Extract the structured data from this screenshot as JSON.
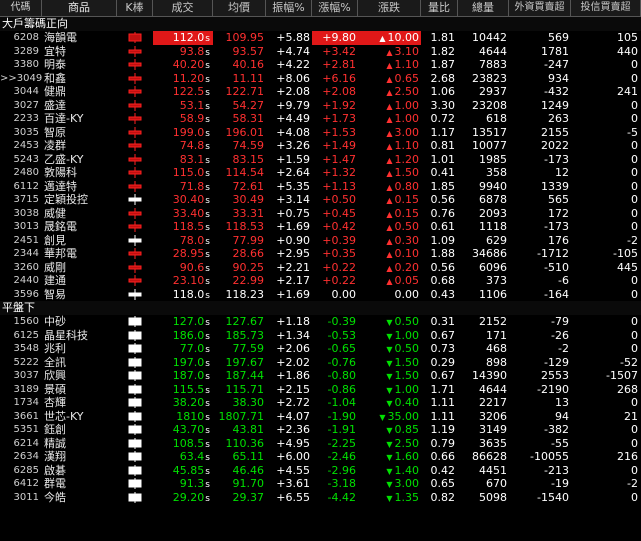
{
  "headers": {
    "code": "代碼",
    "name": "商品",
    "k": "K棒",
    "deal": "成交",
    "avg": "均價",
    "amp": "振幅%",
    "pct": "漲幅%",
    "chg": "漲跌",
    "vr": "量比",
    "vol": "總量",
    "fi": "外資買賣超",
    "it": "投信買賣超"
  },
  "sections": [
    {
      "title": "大戶籌碼正向",
      "rows": [
        {
          "code": "6208",
          "name": "海韻電",
          "k": "red-box",
          "deal": "112.0",
          "deal_flag": "s",
          "deal_hl": true,
          "avg": "109.95",
          "amp": "+5.88",
          "pct": "+9.80",
          "pct_hl": true,
          "chg": "10.00",
          "chg_hl": true,
          "dir": "up",
          "vr": "1.81",
          "vol": "10442",
          "fi": "569",
          "it": "105"
        },
        {
          "code": "3289",
          "name": "宜特",
          "k": "red-cross",
          "deal": "93.8",
          "deal_flag": "s",
          "avg": "93.57",
          "amp": "+4.74",
          "pct": "+3.42",
          "chg": "3.10",
          "dir": "up",
          "vr": "1.82",
          "vol": "4644",
          "fi": "1781",
          "it": "440"
        },
        {
          "code": "3380",
          "name": "明泰",
          "k": "red-cross",
          "deal": "40.20",
          "deal_flag": "s",
          "avg": "40.16",
          "amp": "+4.22",
          "pct": "+2.81",
          "chg": "1.10",
          "dir": "up",
          "vr": "1.87",
          "vol": "7883",
          "fi": "-247",
          "it": "0"
        },
        {
          "code": ">>3049",
          "name": "和鑫",
          "k": "red-cross",
          "deal": "11.20",
          "deal_flag": "s",
          "avg": "11.11",
          "amp": "+8.06",
          "pct": "+6.16",
          "chg": "0.65",
          "dir": "up",
          "vr": "2.68",
          "vol": "23823",
          "fi": "934",
          "it": "0"
        },
        {
          "code": "3044",
          "name": "健鼎",
          "k": "red-cross",
          "deal": "122.5",
          "deal_flag": "s",
          "avg": "122.71",
          "amp": "+2.08",
          "pct": "+2.08",
          "chg": "2.50",
          "dir": "up",
          "vr": "1.06",
          "vol": "2937",
          "fi": "-432",
          "it": "241"
        },
        {
          "code": "3027",
          "name": "盛達",
          "k": "red-cross",
          "deal": "53.1",
          "deal_flag": "s",
          "avg": "54.27",
          "amp": "+9.79",
          "pct": "+1.92",
          "chg": "1.00",
          "dir": "up",
          "vr": "3.30",
          "vol": "23208",
          "fi": "1249",
          "it": "0"
        },
        {
          "code": "2233",
          "name": "百達-KY",
          "k": "red-cross",
          "deal": "58.9",
          "deal_flag": "s",
          "avg": "58.31",
          "amp": "+4.49",
          "pct": "+1.73",
          "chg": "1.00",
          "dir": "up",
          "vr": "0.72",
          "vol": "618",
          "fi": "263",
          "it": "0"
        },
        {
          "code": "3035",
          "name": "智原",
          "k": "red-cross",
          "deal": "199.0",
          "deal_flag": "s",
          "avg": "196.01",
          "amp": "+4.08",
          "pct": "+1.53",
          "chg": "3.00",
          "dir": "up",
          "vr": "1.17",
          "vol": "13517",
          "fi": "2155",
          "it": "-5"
        },
        {
          "code": "2453",
          "name": "凌群",
          "k": "red-cross",
          "deal": "74.8",
          "deal_flag": "s",
          "avg": "74.59",
          "amp": "+3.26",
          "pct": "+1.49",
          "chg": "1.10",
          "dir": "up",
          "vr": "0.81",
          "vol": "10077",
          "fi": "2022",
          "it": "0"
        },
        {
          "code": "5243",
          "name": "乙盛-KY",
          "k": "red-cross",
          "deal": "83.1",
          "deal_flag": "s",
          "avg": "83.15",
          "amp": "+1.59",
          "pct": "+1.47",
          "chg": "1.20",
          "dir": "up",
          "vr": "1.01",
          "vol": "1985",
          "fi": "-173",
          "it": "0"
        },
        {
          "code": "2480",
          "name": "敦陽科",
          "k": "red-cross",
          "deal": "115.0",
          "deal_flag": "s",
          "avg": "114.54",
          "amp": "+2.64",
          "pct": "+1.32",
          "chg": "1.50",
          "dir": "up",
          "vr": "0.41",
          "vol": "358",
          "fi": "12",
          "it": "0"
        },
        {
          "code": "6112",
          "name": "邁達特",
          "k": "red-cross",
          "deal": "71.8",
          "deal_flag": "s",
          "avg": "72.61",
          "amp": "+5.35",
          "pct": "+1.13",
          "chg": "0.80",
          "dir": "up",
          "vr": "1.85",
          "vol": "9940",
          "fi": "1339",
          "it": "0"
        },
        {
          "code": "3715",
          "name": "定穎投控",
          "k": "white-cross",
          "deal": "30.40",
          "deal_flag": "s",
          "avg": "30.49",
          "amp": "+3.14",
          "pct": "+0.50",
          "chg": "0.15",
          "dir": "up",
          "vr": "0.56",
          "vol": "6878",
          "fi": "565",
          "it": "0"
        },
        {
          "code": "3038",
          "name": "威健",
          "k": "red-cross",
          "deal": "33.40",
          "deal_flag": "s",
          "avg": "33.31",
          "amp": "+0.75",
          "pct": "+0.45",
          "chg": "0.15",
          "dir": "up",
          "vr": "0.76",
          "vol": "2093",
          "fi": "172",
          "it": "0"
        },
        {
          "code": "3013",
          "name": "晟銘電",
          "k": "red-cross",
          "deal": "118.5",
          "deal_flag": "s",
          "avg": "118.53",
          "amp": "+1.69",
          "pct": "+0.42",
          "chg": "0.50",
          "dir": "up",
          "vr": "0.61",
          "vol": "1118",
          "fi": "-173",
          "it": "0"
        },
        {
          "code": "2451",
          "name": "創見",
          "k": "white-cross",
          "deal": "78.0",
          "deal_flag": "s",
          "avg": "77.99",
          "amp": "+0.90",
          "pct": "+0.39",
          "chg": "0.30",
          "dir": "up",
          "vr": "1.09",
          "vol": "629",
          "fi": "176",
          "it": "-2"
        },
        {
          "code": "2344",
          "name": "華邦電",
          "k": "red-cross",
          "deal": "28.95",
          "deal_flag": "s",
          "avg": "28.66",
          "amp": "+2.95",
          "pct": "+0.35",
          "chg": "0.10",
          "dir": "up",
          "vr": "1.88",
          "vol": "34686",
          "fi": "-1712",
          "it": "-105"
        },
        {
          "code": "3260",
          "name": "威剛",
          "k": "red-cross",
          "deal": "90.6",
          "deal_flag": "s",
          "avg": "90.25",
          "amp": "+2.21",
          "pct": "+0.22",
          "chg": "0.20",
          "dir": "up",
          "vr": "0.56",
          "vol": "6096",
          "fi": "-510",
          "it": "445"
        },
        {
          "code": "2440",
          "name": "建通",
          "k": "red-cross",
          "deal": "23.10",
          "deal_flag": "s",
          "avg": "22.99",
          "amp": "+2.17",
          "pct": "+0.22",
          "chg": "0.05",
          "dir": "up",
          "vr": "0.68",
          "vol": "373",
          "fi": "-6",
          "it": "0"
        },
        {
          "code": "3596",
          "name": "智易",
          "k": "white-cross",
          "deal": "118.0",
          "deal_flag": "s",
          "avg": "118.23",
          "amp": "+1.69",
          "pct": "0.00",
          "chg": "0.00",
          "dir": "flat",
          "vr": "0.43",
          "vol": "1106",
          "fi": "-164",
          "it": "0"
        }
      ]
    },
    {
      "title": "平盤下",
      "rows": [
        {
          "code": "1560",
          "name": "中砂",
          "k": "white-box",
          "deal": "127.0",
          "deal_flag": "s",
          "avg": "127.67",
          "amp": "+1.18",
          "pct": "-0.39",
          "chg": "0.50",
          "dir": "down",
          "vr": "0.31",
          "vol": "2152",
          "fi": "-79",
          "it": "0"
        },
        {
          "code": "6125",
          "name": "晶星科技",
          "k": "white-box",
          "deal": "186.0",
          "deal_flag": "s",
          "avg": "185.73",
          "amp": "+1.34",
          "pct": "-0.53",
          "chg": "1.00",
          "dir": "down",
          "vr": "0.67",
          "vol": "171",
          "fi": "-26",
          "it": "0"
        },
        {
          "code": "3548",
          "name": "兆利",
          "k": "white-box",
          "deal": "77.0",
          "deal_flag": "s",
          "avg": "77.59",
          "amp": "+2.06",
          "pct": "-0.65",
          "chg": "0.50",
          "dir": "down",
          "vr": "0.73",
          "vol": "468",
          "fi": "-2",
          "it": "0"
        },
        {
          "code": "5222",
          "name": "全訊",
          "k": "white-box",
          "deal": "197.0",
          "deal_flag": "s",
          "avg": "197.67",
          "amp": "+2.02",
          "pct": "-0.76",
          "chg": "1.50",
          "dir": "down",
          "vr": "0.29",
          "vol": "898",
          "fi": "-129",
          "it": "-52"
        },
        {
          "code": "3037",
          "name": "欣興",
          "k": "white-box",
          "deal": "187.0",
          "deal_flag": "s",
          "avg": "187.44",
          "amp": "+1.86",
          "pct": "-0.80",
          "chg": "1.50",
          "dir": "down",
          "vr": "0.67",
          "vol": "14390",
          "fi": "2553",
          "it": "-1507"
        },
        {
          "code": "3189",
          "name": "景碩",
          "k": "white-box",
          "deal": "115.5",
          "deal_flag": "s",
          "avg": "115.71",
          "amp": "+2.15",
          "pct": "-0.86",
          "chg": "1.00",
          "dir": "down",
          "vr": "1.71",
          "vol": "4644",
          "fi": "-2190",
          "it": "268"
        },
        {
          "code": "1734",
          "name": "杏輝",
          "k": "white-box",
          "deal": "38.20",
          "deal_flag": "s",
          "avg": "38.30",
          "amp": "+2.72",
          "pct": "-1.04",
          "chg": "0.40",
          "dir": "down",
          "vr": "1.11",
          "vol": "2217",
          "fi": "13",
          "it": "0"
        },
        {
          "code": "3661",
          "name": "世芯-KY",
          "k": "white-box",
          "deal": "1810",
          "deal_flag": "s",
          "avg": "1807.71",
          "amp": "+4.07",
          "pct": "-1.90",
          "chg": "35.00",
          "dir": "down",
          "vr": "1.11",
          "vol": "3206",
          "fi": "94",
          "it": "21"
        },
        {
          "code": "5351",
          "name": "鈺創",
          "k": "white-box",
          "deal": "43.70",
          "deal_flag": "s",
          "avg": "43.81",
          "amp": "+2.36",
          "pct": "-1.91",
          "chg": "0.85",
          "dir": "down",
          "vr": "1.19",
          "vol": "3149",
          "fi": "-382",
          "it": "0"
        },
        {
          "code": "6214",
          "name": "精誠",
          "k": "white-box",
          "deal": "108.5",
          "deal_flag": "s",
          "avg": "110.36",
          "amp": "+4.95",
          "pct": "-2.25",
          "chg": "2.50",
          "dir": "down",
          "vr": "0.79",
          "vol": "3635",
          "fi": "-55",
          "it": "0"
        },
        {
          "code": "2634",
          "name": "漢翔",
          "k": "white-box",
          "deal": "63.4",
          "deal_flag": "s",
          "avg": "65.11",
          "amp": "+6.00",
          "pct": "-2.46",
          "chg": "1.60",
          "dir": "down",
          "vr": "0.66",
          "vol": "86628",
          "fi": "-10055",
          "it": "216"
        },
        {
          "code": "6285",
          "name": "啟碁",
          "k": "white-box",
          "deal": "45.85",
          "deal_flag": "s",
          "avg": "46.46",
          "amp": "+4.55",
          "pct": "-2.96",
          "chg": "1.40",
          "dir": "down",
          "vr": "0.42",
          "vol": "4451",
          "fi": "-213",
          "it": "0"
        },
        {
          "code": "6412",
          "name": "群電",
          "k": "white-box",
          "deal": "91.3",
          "deal_flag": "s",
          "avg": "91.70",
          "amp": "+3.61",
          "pct": "-3.18",
          "chg": "3.00",
          "dir": "down",
          "vr": "0.65",
          "vol": "670",
          "fi": "-19",
          "it": "-2"
        },
        {
          "code": "3011",
          "name": "今皓",
          "k": "white-box",
          "deal": "29.20",
          "deal_flag": "s",
          "avg": "29.37",
          "amp": "+6.55",
          "pct": "-4.42",
          "chg": "1.35",
          "dir": "down",
          "vr": "0.82",
          "vol": "5098",
          "fi": "-1540",
          "it": "0"
        }
      ]
    }
  ]
}
